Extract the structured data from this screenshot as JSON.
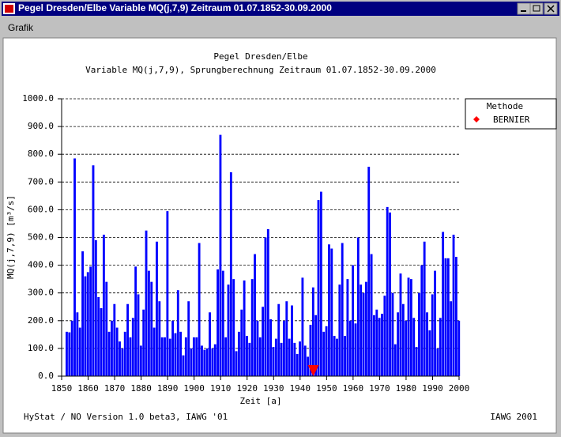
{
  "window": {
    "title": "Pegel Dresden/Elbe Variable MQ(j,7,9) Zeitraum 01.07.1852-30.09.2000"
  },
  "menu": [
    "Grafik"
  ],
  "chart_data": {
    "type": "bar",
    "title": "Pegel Dresden/Elbe",
    "subtitle": "Variable MQ(j,7,9), Sprungberechnung Zeitraum 01.07.1852-30.09.2000",
    "y_label": "MQ(j,7,9) [m³/s]",
    "x_label": "Zeit [a]",
    "color": "#0000ff",
    "x": [
      1852,
      1853,
      1854,
      1855,
      1856,
      1857,
      1858,
      1859,
      1860,
      1861,
      1862,
      1863,
      1864,
      1865,
      1866,
      1867,
      1868,
      1869,
      1870,
      1871,
      1872,
      1873,
      1874,
      1875,
      1876,
      1877,
      1878,
      1879,
      1880,
      1881,
      1882,
      1883,
      1884,
      1885,
      1886,
      1887,
      1888,
      1889,
      1890,
      1891,
      1892,
      1893,
      1894,
      1895,
      1896,
      1897,
      1898,
      1899,
      1900,
      1901,
      1902,
      1903,
      1904,
      1905,
      1906,
      1907,
      1908,
      1909,
      1910,
      1911,
      1912,
      1913,
      1914,
      1915,
      1916,
      1917,
      1918,
      1919,
      1920,
      1921,
      1922,
      1923,
      1924,
      1925,
      1926,
      1927,
      1928,
      1929,
      1930,
      1931,
      1932,
      1933,
      1934,
      1935,
      1936,
      1937,
      1938,
      1939,
      1940,
      1941,
      1942,
      1943,
      1944,
      1945,
      1946,
      1947,
      1948,
      1949,
      1950,
      1951,
      1952,
      1953,
      1954,
      1955,
      1956,
      1957,
      1958,
      1959,
      1960,
      1961,
      1962,
      1963,
      1964,
      1965,
      1966,
      1967,
      1968,
      1969,
      1970,
      1971,
      1972,
      1973,
      1974,
      1975,
      1976,
      1977,
      1978,
      1979,
      1980,
      1981,
      1982,
      1983,
      1984,
      1985,
      1986,
      1987,
      1988,
      1989,
      1990,
      1991,
      1992,
      1993,
      1994,
      1995,
      1996,
      1997,
      1998,
      1999,
      2000
    ],
    "values": [
      160,
      158,
      200,
      785,
      230,
      175,
      450,
      360,
      375,
      395,
      760,
      490,
      285,
      245,
      510,
      340,
      160,
      200,
      260,
      175,
      125,
      100,
      160,
      260,
      140,
      210,
      395,
      295,
      110,
      240,
      525,
      380,
      340,
      175,
      485,
      270,
      140,
      140,
      595,
      135,
      200,
      155,
      310,
      160,
      75,
      140,
      270,
      100,
      140,
      140,
      480,
      110,
      95,
      100,
      230,
      100,
      115,
      385,
      870,
      380,
      140,
      330,
      735,
      350,
      90,
      160,
      240,
      345,
      145,
      120,
      350,
      440,
      200,
      140,
      250,
      500,
      530,
      205,
      105,
      135,
      260,
      120,
      200,
      270,
      135,
      255,
      120,
      80,
      125,
      355,
      110,
      70,
      185,
      320,
      220,
      635,
      665,
      160,
      180,
      475,
      460,
      145,
      135,
      330,
      480,
      145,
      350,
      200,
      400,
      190,
      500,
      330,
      300,
      340,
      755,
      440,
      220,
      240,
      210,
      225,
      290,
      610,
      590,
      300,
      115,
      230,
      370,
      260,
      200,
      355,
      350,
      210,
      105,
      300,
      400,
      485,
      230,
      165,
      295,
      380,
      100,
      210,
      520,
      425,
      425,
      270,
      510,
      430,
      200
    ],
    "xlim": [
      1850,
      2000
    ],
    "xticks": [
      1850,
      1860,
      1870,
      1880,
      1890,
      1900,
      1910,
      1920,
      1930,
      1940,
      1950,
      1960,
      1970,
      1980,
      1990,
      2000
    ],
    "ylim": [
      0,
      1000
    ],
    "yticks": [
      {
        "value": 0,
        "label": "0.0"
      },
      {
        "value": 100,
        "label": "100.0"
      },
      {
        "value": 200,
        "label": "200.0"
      },
      {
        "value": 300,
        "label": "300.0"
      },
      {
        "value": 400,
        "label": "400.0"
      },
      {
        "value": 500,
        "label": "500.0"
      },
      {
        "value": 600,
        "label": "600.0"
      },
      {
        "value": 700,
        "label": "700.0"
      },
      {
        "value": 800,
        "label": "800.0"
      },
      {
        "value": 900,
        "label": "900.0"
      },
      {
        "value": 1000,
        "label": "1000.0"
      }
    ],
    "grid": true,
    "legend_title": "Methode",
    "legend": "right",
    "markers": {
      "name": "BERNIER",
      "color": "#ff0000",
      "x": [
        1945
      ]
    }
  },
  "footer": {
    "left": "HyStat / NO Version 1.0 beta3, IAWG '01",
    "right": "IAWG 2001"
  }
}
